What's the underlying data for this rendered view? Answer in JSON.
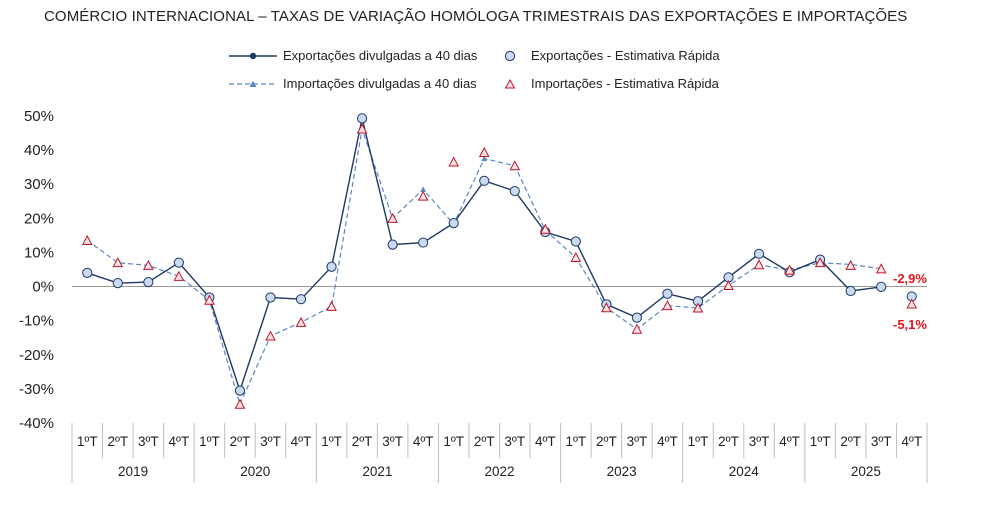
{
  "chart_data": {
    "type": "line",
    "title": "COMÉRCIO INTERNACIONAL – TAXAS DE VARIAÇÃO HOMÓLOGA TRIMESTRAIS DAS EXPORTAÇÕES E IMPORTAÇÕES",
    "ylim": [
      -40,
      50
    ],
    "yticks": [
      "50%",
      "40%",
      "30%",
      "20%",
      "10%",
      "0%",
      "-10%",
      "-20%",
      "-30%",
      "-40%"
    ],
    "ytick_values": [
      50,
      40,
      30,
      20,
      10,
      0,
      -10,
      -20,
      -30,
      -40
    ],
    "quarter_labels": [
      "1ºT",
      "2ºT",
      "3ºT",
      "4ºT"
    ],
    "years": [
      "2019",
      "2020",
      "2021",
      "2022",
      "2023",
      "2024",
      "2025"
    ],
    "legend": {
      "export_line": "Exportações divulgadas a 40 dias",
      "export_flash": "Exportações - Estimativa Rápida",
      "import_line": "Importações divulgadas a 40 dias",
      "import_flash": "Importações - Estimativa Rápida"
    },
    "series": [
      {
        "name": "Exportações divulgadas a 40 dias",
        "values": [
          4.0,
          1.0,
          1.3,
          7.0,
          -3.2,
          -30.5,
          -3.2,
          -3.7,
          5.8,
          49.3,
          12.3,
          12.9,
          18.6,
          31.0,
          28.0,
          16.0,
          13.2,
          -5.2,
          -9.1,
          -2.1,
          -4.3,
          2.7,
          9.6,
          4.2,
          7.9,
          -1.3,
          -0.1,
          null
        ]
      },
      {
        "name": "Exportações - Estimativa Rápida",
        "values": [
          4.0,
          1.0,
          1.3,
          7.0,
          -3.2,
          -30.5,
          -3.2,
          -3.7,
          5.8,
          49.3,
          12.3,
          12.9,
          18.6,
          31.0,
          28.0,
          16.0,
          13.2,
          -5.2,
          -9.1,
          -2.1,
          -4.3,
          2.7,
          9.6,
          4.2,
          7.9,
          -1.3,
          -0.1,
          -2.9
        ]
      },
      {
        "name": "Importações divulgadas a 40 dias",
        "values": [
          13.5,
          7.0,
          6.2,
          3.0,
          -4.0,
          -34.5,
          -14.5,
          -10.5,
          -5.8,
          46.2,
          20.0,
          28.5,
          18.3,
          37.5,
          35.4,
          16.5,
          8.5,
          -6.2,
          -12.5,
          -5.6,
          -6.3,
          0.3,
          6.4,
          4.8,
          7.0,
          6.5,
          5.2,
          null
        ]
      },
      {
        "name": "Importações - Estimativa Rápida",
        "values": [
          13.5,
          7.0,
          6.2,
          3.0,
          -4.0,
          -34.5,
          -14.5,
          -10.5,
          -5.8,
          46.2,
          20.0,
          26.5,
          36.5,
          39.3,
          35.4,
          16.8,
          8.5,
          -6.2,
          -12.5,
          -5.6,
          -6.3,
          0.3,
          6.4,
          4.8,
          7.0,
          6.2,
          5.2,
          -5.1
        ]
      }
    ],
    "annotations": [
      "-2,9%",
      "-5,1%"
    ],
    "colors": {
      "export_line": "#1f3864",
      "export_fill": "#c9daf1",
      "export_edge": "#1f3864",
      "import_line": "#5b87c4",
      "import_marker": "#c0152a",
      "annotation": "#e8141c",
      "axis": "#9a9a9a",
      "grid": "#bfbfbf"
    }
  }
}
